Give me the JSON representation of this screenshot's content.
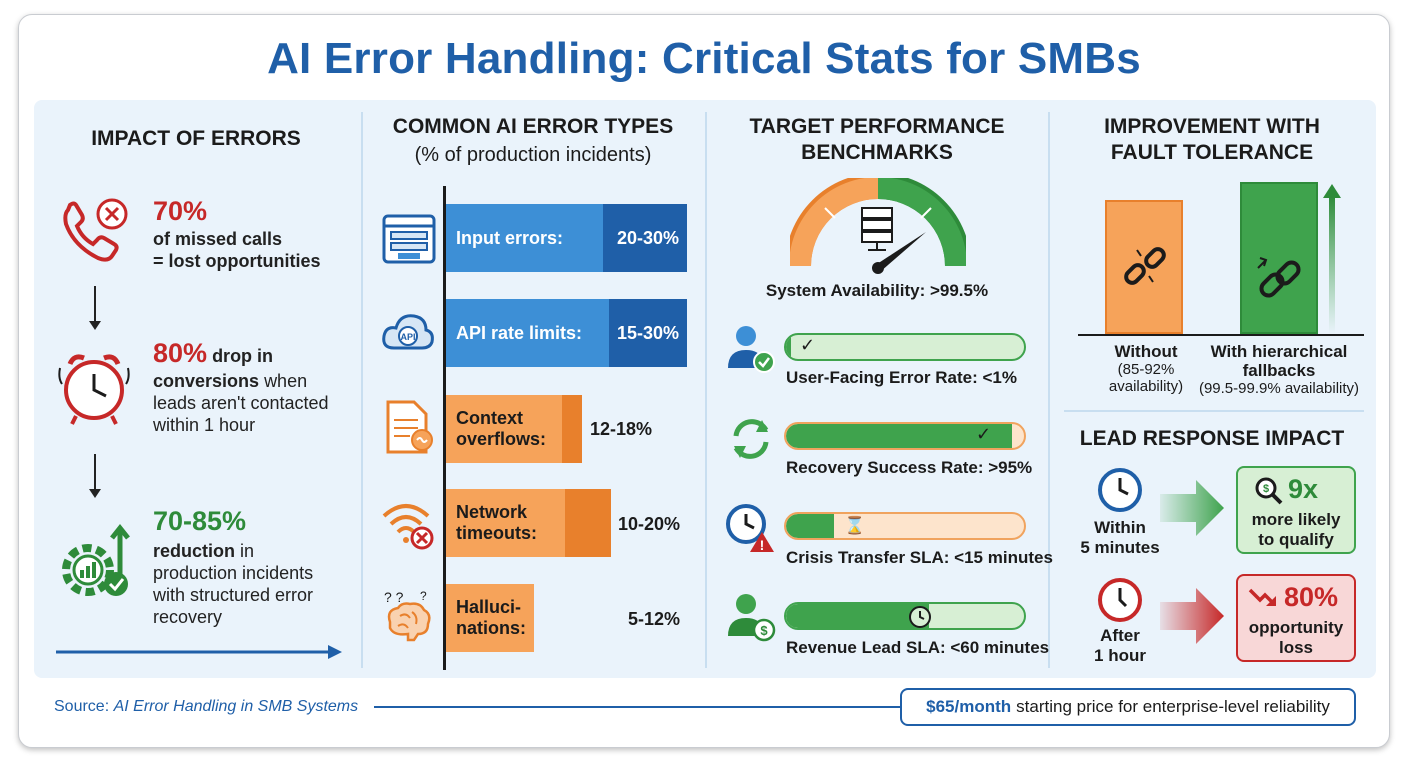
{
  "title": "AI Error Handling: Critical Stats for SMBs",
  "col1": {
    "heading": "IMPACT OF ERRORS",
    "stat1_num": "70%",
    "stat1_l1": "of missed calls",
    "stat1_l2": "= lost opportunities",
    "stat2_num": "80%",
    "stat2_a": "drop in",
    "stat2_b": "conversions",
    "stat2_c": "when",
    "stat2_l3": "leads aren't contacted",
    "stat2_l4": "within 1 hour",
    "stat3_num": "70-85%",
    "stat3_a": "reduction",
    "stat3_b": "in",
    "stat3_l2": "production incidents",
    "stat3_l3": "with structured error",
    "stat3_l4": "recovery"
  },
  "col2": {
    "heading": "COMMON AI ERROR TYPES",
    "subheading": "(% of production incidents)",
    "bars": [
      {
        "label": "Input errors:",
        "value": "20-30%",
        "color": "blue"
      },
      {
        "label": "API rate limits:",
        "value": "15-30%",
        "color": "blue"
      },
      {
        "label1": "Context",
        "label2": "overflows:",
        "value": "12-18%",
        "color": "orange"
      },
      {
        "label1": "Network",
        "label2": "timeouts:",
        "value": "10-20%",
        "color": "orange"
      },
      {
        "label1": "Halluci-",
        "label2": "nations:",
        "value": "5-12%",
        "color": "orange"
      }
    ],
    "icons": [
      "browser-form-icon",
      "api-cloud-icon",
      "document-icon",
      "wifi-error-icon",
      "brain-icon"
    ]
  },
  "col3": {
    "heading1": "TARGET PERFORMANCE",
    "heading2": "BENCHMARKS",
    "gauge_label": "System Availability: >99.5%",
    "metrics": [
      {
        "label": "User-Facing Error Rate: <1%",
        "fill": 0.02
      },
      {
        "label": "Recovery Success Rate: >95%",
        "fill": 0.95
      },
      {
        "label": "Crisis Transfer SLA: <15 minutes",
        "fill": 0.2
      },
      {
        "label": "Revenue Lead SLA: <60 minutes",
        "fill": 0.6
      }
    ]
  },
  "col4": {
    "heading1": "IMPROVEMENT WITH",
    "heading2": "FAULT TOLERANCE",
    "without_label": "Without",
    "without_sub1": "(85-92%",
    "without_sub2": "availability)",
    "with_label1": "With hierarchical",
    "with_label2": "fallbacks",
    "with_sub": "(99.5-99.9% availability)",
    "lead_heading": "LEAD RESPONSE IMPACT",
    "fast_label1": "Within",
    "fast_label2": "5 minutes",
    "fast_stat": "9x",
    "fast_txt1": "more likely",
    "fast_txt2": "to qualify",
    "slow_label1": "After",
    "slow_label2": "1 hour",
    "slow_stat": "80%",
    "slow_txt1": "opportunity",
    "slow_txt2": "loss"
  },
  "footer": {
    "source_prefix": "Source:",
    "source_title": "AI Error Handling in SMB Systems",
    "price": "$65/month",
    "price_txt": "starting price for enterprise-level reliability"
  },
  "colors": {
    "blue": "#1f5fa8",
    "blue_light": "#3d8fd6",
    "orange": "#f6a35a",
    "orange_dark": "#e8802c",
    "green": "#3fa34d",
    "red": "#c62828"
  }
}
